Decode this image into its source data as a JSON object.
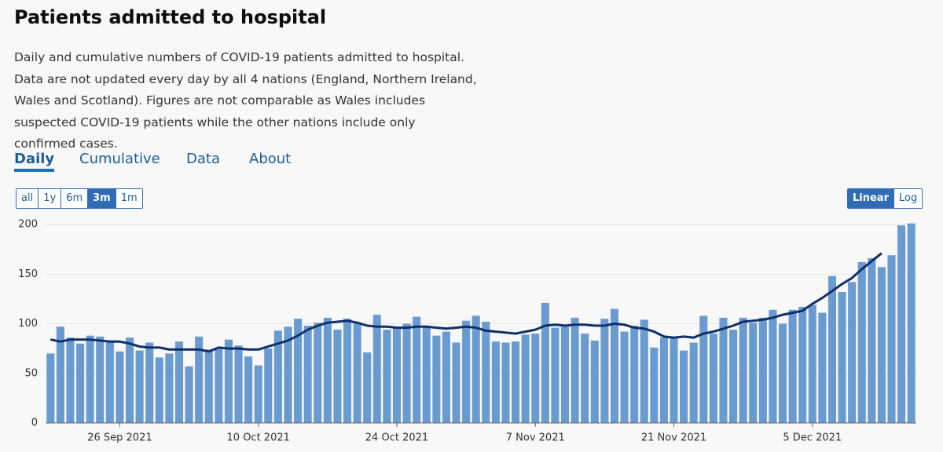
{
  "title": "Patients admitted to hospital",
  "description": "Daily and cumulative numbers of COVID-19 patients admitted to hospital. Data are not updated every day by all 4 nations (England, Northern Ireland, Wales and Scotland). Figures are not comparable as Wales includes suspected COVID-19 patients while the other nations include only confirmed cases.",
  "tabs": [
    "Daily",
    "Cumulative",
    "Data",
    "About"
  ],
  "ranges": [
    "all",
    "1y",
    "6m",
    "3m",
    "1m"
  ],
  "scales": [
    "Linear",
    "Log"
  ],
  "chart_data": {
    "type": "bar",
    "categories": [
      null,
      null,
      null,
      null,
      null,
      null,
      null,
      "26 Sep 2021",
      null,
      null,
      null,
      null,
      null,
      null,
      null,
      null,
      null,
      null,
      null,
      null,
      null,
      "10 Oct 2021",
      null,
      null,
      null,
      null,
      null,
      null,
      null,
      null,
      null,
      null,
      null,
      null,
      null,
      "24 Oct 2021",
      null,
      null,
      null,
      null,
      null,
      null,
      null,
      null,
      null,
      null,
      null,
      null,
      null,
      "7 Nov 2021",
      null,
      null,
      null,
      null,
      null,
      null,
      null,
      null,
      null,
      null,
      null,
      null,
      null,
      "21 Nov 2021",
      null,
      null,
      null,
      null,
      null,
      null,
      null,
      null,
      null,
      null,
      null,
      null,
      null,
      "5 Dec 2021",
      null,
      null,
      null,
      null,
      null,
      null,
      null,
      null,
      null,
      null
    ],
    "values": [
      70,
      97,
      86,
      80,
      88,
      87,
      82,
      72,
      86,
      73,
      81,
      66,
      70,
      82,
      57,
      87,
      74,
      75,
      84,
      78,
      67,
      58,
      75,
      93,
      97,
      105,
      98,
      101,
      106,
      94,
      105,
      101,
      71,
      109,
      94,
      96,
      100,
      107,
      98,
      88,
      92,
      81,
      103,
      108,
      102,
      82,
      81,
      82,
      89,
      90,
      121,
      96,
      97,
      106,
      90,
      83,
      105,
      115,
      92,
      98,
      104,
      76,
      86,
      86,
      73,
      81,
      108,
      90,
      106,
      94,
      106,
      101,
      106,
      114,
      100,
      114,
      117,
      119,
      111,
      148,
      132,
      142,
      162,
      166,
      157,
      169,
      199,
      201
    ],
    "moving_average": [
      84,
      82,
      84,
      84,
      84,
      83,
      82,
      82,
      80,
      77,
      76,
      76,
      74,
      74,
      74,
      74,
      72,
      76,
      75,
      75,
      74,
      74,
      77,
      80,
      83,
      88,
      94,
      98,
      101,
      102,
      103,
      101,
      98,
      97,
      97,
      96,
      96,
      97,
      97,
      96,
      95,
      96,
      97,
      96,
      93,
      92,
      91,
      90,
      92,
      94,
      98,
      99,
      98,
      99,
      99,
      98,
      98,
      100,
      99,
      96,
      95,
      92,
      87,
      86,
      87,
      86,
      90,
      92,
      95,
      98,
      102,
      103,
      104,
      106,
      109,
      111,
      113,
      120,
      126,
      133,
      140,
      146,
      155,
      163,
      171,
      null,
      null,
      null
    ],
    "color": "#6a9bd0",
    "line_color": "#0f2f6b",
    "ylim": [
      0,
      200
    ],
    "yticks": [
      0,
      50,
      100,
      150,
      200
    ],
    "grid": true
  }
}
